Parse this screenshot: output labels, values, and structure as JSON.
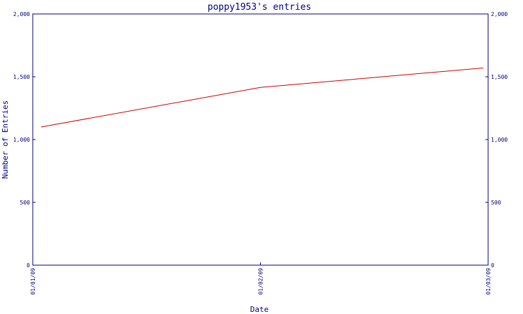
{
  "colors": {
    "axis": "#000080",
    "text": "#000080",
    "line": "#cc0000",
    "background": "#ffffff"
  },
  "chart_data": {
    "type": "line",
    "title": "poppy1953's entries",
    "xlabel": "Date",
    "ylabel": "Number of Entries",
    "x": [
      "01/01/09",
      "01/02/09",
      "01/03/09"
    ],
    "ylim": [
      0,
      2000
    ],
    "y_ticks": [
      "0",
      "500",
      "1,000",
      "1,500",
      "2,000"
    ],
    "y_tick_values": [
      0,
      500,
      1000,
      1500,
      2000
    ],
    "y_axis_right": true,
    "grid": false,
    "series": [
      {
        "values": [
          1100,
          1415,
          1570
        ]
      }
    ]
  }
}
